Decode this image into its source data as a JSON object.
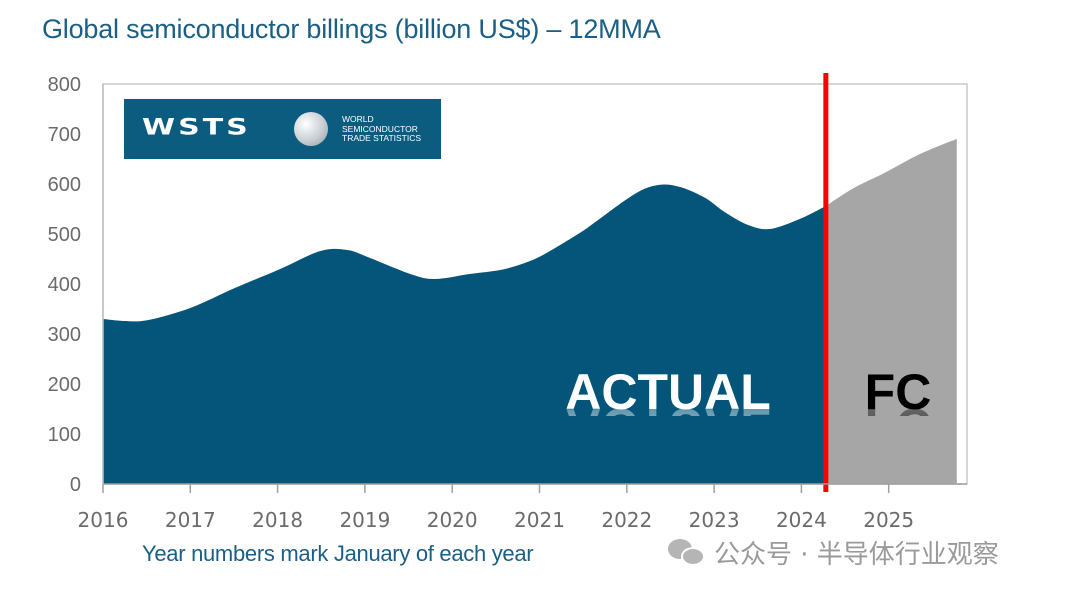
{
  "title": "Global semiconductor billings (billion US$) – 12MMA",
  "x_note": "Year numbers mark January of each year",
  "logo": {
    "word": "WSTS",
    "subtitle_lines": [
      "WORLD",
      "SEMICONDUCTOR",
      "TRADE STATISTICS"
    ]
  },
  "watermark": {
    "icon": "wechat-icon",
    "text": "公众号 · 半导体行业观察"
  },
  "colors": {
    "actual": "#045579",
    "forecast": "#a6a6a6",
    "divider": "#ff0000",
    "title": "#1a5f86"
  },
  "chart_data": {
    "type": "area",
    "title": "Global semiconductor billings (billion US$) – 12MMA",
    "xlabel": "Year numbers mark January of each year",
    "ylabel": "",
    "ylim": [
      0,
      800
    ],
    "xlim": [
      2016,
      2025.78
    ],
    "yticks": [
      "0",
      "100",
      "200",
      "300",
      "400",
      "500",
      "600",
      "700",
      "800"
    ],
    "xticks": [
      "2016",
      "2017",
      "2018",
      "2019",
      "2020",
      "2021",
      "2022",
      "2023",
      "2024",
      "2025"
    ],
    "grid": false,
    "divider_x": 2024.28,
    "annotations": [
      "ACTUAL",
      "FC"
    ],
    "series": [
      {
        "name": "ACTUAL",
        "x": [
          2016.0,
          2016.25,
          2016.52,
          2017.0,
          2017.51,
          2018.03,
          2018.49,
          2018.8,
          2019.06,
          2019.52,
          2019.8,
          2020.2,
          2020.55,
          2020.83,
          2021.06,
          2021.46,
          2021.64,
          2022.09,
          2022.36,
          2022.61,
          2022.9,
          2023.12,
          2023.39,
          2023.64,
          2023.98,
          2024.28
        ],
        "values": [
          330,
          326,
          328,
          352,
          392,
          430,
          466,
          468,
          452,
          420,
          410,
          420,
          428,
          442,
          460,
          502,
          524,
          580,
          598,
          594,
          572,
          544,
          518,
          510,
          530,
          556
        ]
      },
      {
        "name": "FC",
        "x": [
          2024.28,
          2024.6,
          2024.95,
          2025.3,
          2025.6,
          2025.78
        ],
        "values": [
          556,
          592,
          622,
          655,
          678,
          690
        ]
      }
    ]
  }
}
